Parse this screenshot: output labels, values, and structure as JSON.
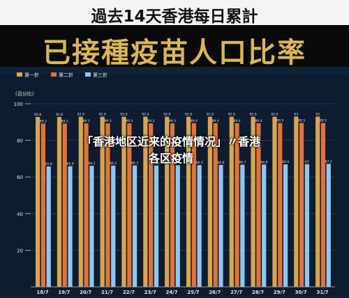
{
  "overlay": {
    "line1": "「香港地区近来的疫情情况」〃香港",
    "line2": "各区疫情"
  },
  "colors": {
    "first_dose": "#d9a64e",
    "second_dose": "#e0733b",
    "third_dose": "#8ec8ef",
    "background": "#0d1c30"
  },
  "chart_data": {
    "type": "bar",
    "title": "過去14天香港每日累計",
    "subtitle": "已接種疫苗人口比率",
    "ylabel": "(百分比)",
    "ylim": [
      0,
      100
    ],
    "yticks": [
      20,
      40,
      60,
      80,
      100
    ],
    "legend_position": "top-left",
    "categories": [
      "18/7",
      "19/7",
      "20/7",
      "21/7",
      "22/7",
      "23/7",
      "24/7",
      "25/7",
      "26/7",
      "27/7",
      "28/7",
      "29/7",
      "30/7",
      "31/7"
    ],
    "series": [
      {
        "name": "第一針",
        "values": [
          92.8,
          92.8,
          92.9,
          92.9,
          92.9,
          92.9,
          92.9,
          92.9,
          92.9,
          92.9,
          92.9,
          92.9,
          93,
          93
        ],
        "labels": [
          "92.8",
          "92.8",
          "92.9",
          "92.9",
          "92.9",
          "92.9",
          "92.9",
          "92.9",
          "92.9",
          "92.9",
          "92.9",
          "92.9",
          "93",
          "93"
        ]
      },
      {
        "name": "第二針",
        "values": [
          89.2,
          89.2,
          89.3,
          89.3,
          89.3,
          89.3,
          89.3,
          89.4,
          89.4,
          89.4,
          89.4,
          89.5,
          89.5,
          89.5
        ],
        "labels": [
          "89.2",
          "89.2",
          "89.3",
          "89.3",
          "89.3",
          "89.3",
          "89.3",
          "89.4",
          "89.4",
          "89.4",
          "89.4",
          "89.5",
          "89.5",
          "89.5"
        ]
      },
      {
        "name": "第三針",
        "values": [
          65.8,
          65.9,
          66.1,
          66.2,
          66.3,
          66.3,
          66.4,
          66.5,
          66.6,
          66.7,
          66.8,
          66.9,
          67,
          67.2
        ],
        "labels": [
          "65.8",
          "65.9",
          "66.1",
          "66.2",
          "66.3",
          "66.3",
          "66.4",
          "66.5",
          "66.6",
          "66.7",
          "66.8",
          "66.9",
          "67",
          "67.2"
        ]
      }
    ],
    "grid": true
  }
}
